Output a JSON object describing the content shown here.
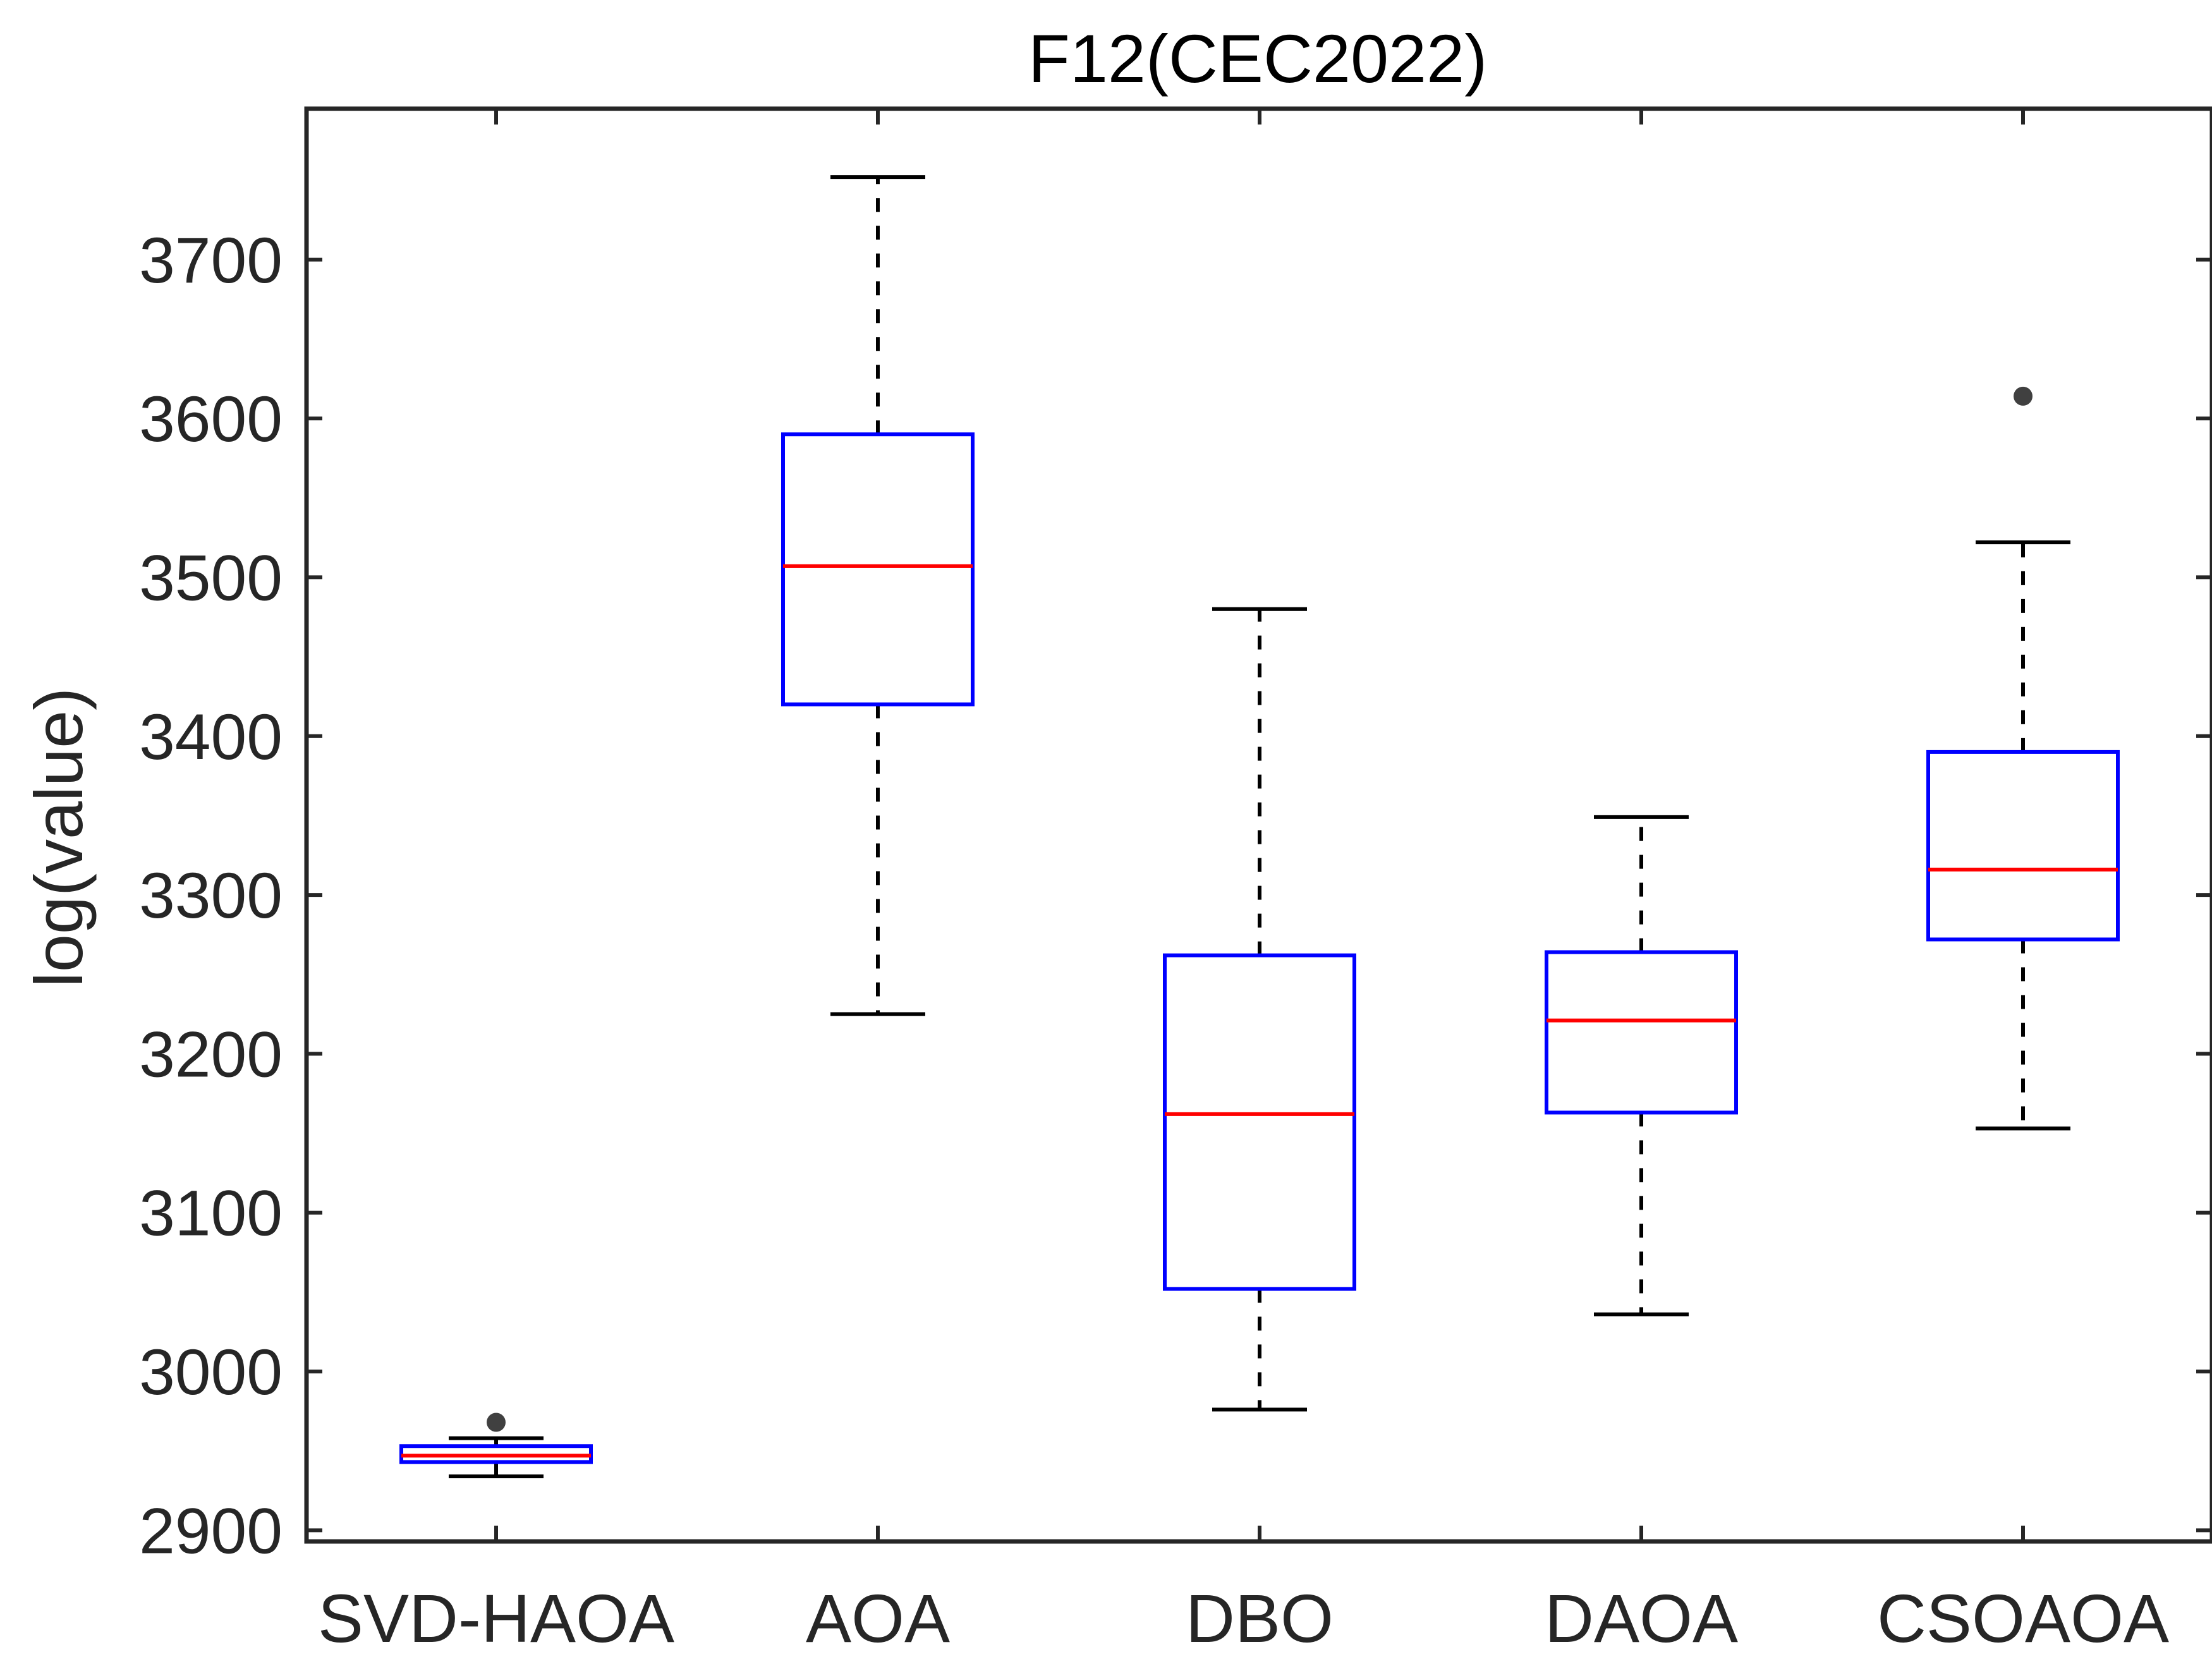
{
  "chart_data": {
    "type": "boxplot",
    "title": "F12(CEC2022)",
    "xlabel": "",
    "ylabel": "log(value)",
    "ylim": [
      2893,
      3795
    ],
    "yticks": [
      2900,
      3000,
      3100,
      3200,
      3300,
      3400,
      3500,
      3600,
      3700
    ],
    "ytick_labels": [
      "2900",
      "3000",
      "3100",
      "3200",
      "3300",
      "3400",
      "3500",
      "3600",
      "3700"
    ],
    "categories": [
      "SVD-HAOA",
      "AOA",
      "DBO",
      "DAOA",
      "CSOAOA"
    ],
    "boxes": [
      {
        "category": "SVD-HAOA",
        "whisker_low": 2934,
        "q1": 2943,
        "median": 2947,
        "q3": 2953,
        "whisker_high": 2958,
        "outliers": [
          2968
        ]
      },
      {
        "category": "AOA",
        "whisker_low": 3225,
        "q1": 3420,
        "median": 3507,
        "q3": 3590,
        "whisker_high": 3752,
        "outliers": []
      },
      {
        "category": "DBO",
        "whisker_low": 2976,
        "q1": 3052,
        "median": 3162,
        "q3": 3262,
        "whisker_high": 3480,
        "outliers": []
      },
      {
        "category": "DAOA",
        "whisker_low": 3036,
        "q1": 3163,
        "median": 3221,
        "q3": 3264,
        "whisker_high": 3349,
        "outliers": []
      },
      {
        "category": "CSOAOA",
        "whisker_low": 3153,
        "q1": 3272,
        "median": 3316,
        "q3": 3390,
        "whisker_high": 3522,
        "outliers": [
          3614
        ]
      }
    ],
    "colors": {
      "box": "#0000ff",
      "median": "#ff0000",
      "whisker": "#000000",
      "outlier": "#404040",
      "axis": "#262626"
    },
    "grid": false
  }
}
